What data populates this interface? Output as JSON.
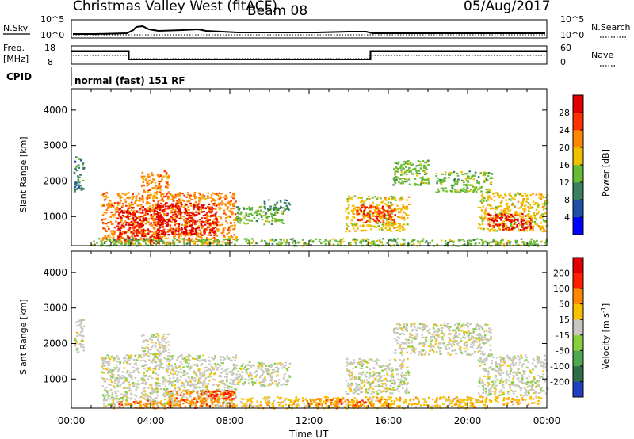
{
  "header": {
    "title": "Christmas Valley West (fitACF)",
    "beam": "Beam 08",
    "date": "05/Aug/2017"
  },
  "strips": {
    "nsky_label": "N.Sky",
    "nsky_ticks": [
      "10^5",
      "10^0"
    ],
    "nsearch_label": "N.Search",
    "nsearch_ticks": [
      "10^5",
      "10^0"
    ],
    "freq_label": "Freq.",
    "freq_unit": "[MHz]",
    "freq_ticks": [
      "18",
      "8"
    ],
    "nave_label": "Nave",
    "nave_ticks": [
      "60",
      "0"
    ],
    "cpid_label": "CPID",
    "cpid_value": "normal (fast) 151 RF",
    "freq_steps": [
      {
        "from_h": 0,
        "to_h": 2.9,
        "mhz": 15.2
      },
      {
        "from_h": 2.9,
        "to_h": 15.1,
        "mhz": 10.6
      },
      {
        "from_h": 15.1,
        "to_h": 24,
        "mhz": 15.2
      }
    ]
  },
  "chart_data": [
    {
      "type": "heatmap",
      "name": "power",
      "ylabel": "Slant Range [km]",
      "yticks": [
        "1000",
        "2000",
        "3000",
        "4000"
      ],
      "ylim": [
        180,
        4600
      ],
      "xlim_hours": [
        0,
        24
      ],
      "colorbar_label": "Power [dB]",
      "colorbar_ticks": [
        "4",
        "8",
        "12",
        "16",
        "20",
        "24",
        "28"
      ],
      "colors": [
        "#0000ff",
        "#1f4fa8",
        "#3d8060",
        "#66bb33",
        "#f0c000",
        "#ff8800",
        "#ff3000",
        "#e00000"
      ],
      "patches": [
        {
          "t0": 0.1,
          "t1": 0.6,
          "r0": 1700,
          "r1": 2700,
          "level": 2
        },
        {
          "t0": 1.5,
          "t1": 8.3,
          "r0": 250,
          "r1": 1700,
          "level": 5
        },
        {
          "t0": 2.3,
          "t1": 4.5,
          "r0": 350,
          "r1": 1300,
          "level": 7
        },
        {
          "t0": 4.3,
          "t1": 7.3,
          "r0": 500,
          "r1": 1400,
          "level": 7
        },
        {
          "t0": 3.5,
          "t1": 4.9,
          "r0": 1700,
          "r1": 2300,
          "level": 5
        },
        {
          "t0": 8.3,
          "t1": 10.7,
          "r0": 800,
          "r1": 1300,
          "level": 3
        },
        {
          "t0": 9.7,
          "t1": 11.0,
          "r0": 1200,
          "r1": 1500,
          "level": 2
        },
        {
          "t0": 13.8,
          "t1": 17.0,
          "r0": 600,
          "r1": 1600,
          "level": 4
        },
        {
          "t0": 14.3,
          "t1": 16.3,
          "r0": 850,
          "r1": 1350,
          "level": 6
        },
        {
          "t0": 16.2,
          "t1": 18.0,
          "r0": 1900,
          "r1": 2600,
          "level": 3
        },
        {
          "t0": 18.3,
          "t1": 21.2,
          "r0": 1700,
          "r1": 2300,
          "level": 3
        },
        {
          "t0": 20.5,
          "t1": 24.0,
          "r0": 600,
          "r1": 1700,
          "level": 4
        },
        {
          "t0": 21.0,
          "t1": 23.2,
          "r0": 650,
          "r1": 1100,
          "level": 7
        },
        {
          "t0": 1.0,
          "t1": 24.0,
          "r0": 190,
          "r1": 400,
          "level": 3
        }
      ]
    },
    {
      "type": "heatmap",
      "name": "velocity",
      "ylabel": "Slant Range [km]",
      "yticks": [
        "1000",
        "2000",
        "3000",
        "4000"
      ],
      "ylim": [
        180,
        4600
      ],
      "xlim_hours": [
        0,
        24
      ],
      "xticks": [
        "00:00",
        "04:00",
        "08:00",
        "12:00",
        "16:00",
        "20:00",
        "00:00"
      ],
      "xlabel": "Time UT",
      "colorbar_label": "Velocity [m s^-1]",
      "colorbar_ticks": [
        "200",
        "100",
        "50",
        "15",
        "-15",
        "-50",
        "-100",
        "-200"
      ],
      "colors": [
        "#2040c0",
        "#2e6e48",
        "#4ea850",
        "#88d040",
        "#c8c8c0",
        "#f8c000",
        "#ff8800",
        "#ff2000",
        "#e00000"
      ],
      "patches": [
        {
          "t0": 0.1,
          "t1": 0.6,
          "r0": 1700,
          "r1": 2700,
          "level": 4
        },
        {
          "t0": 1.5,
          "t1": 8.3,
          "r0": 250,
          "r1": 1700,
          "level": 4
        },
        {
          "t0": 3.5,
          "t1": 4.9,
          "r0": 1700,
          "r1": 2300,
          "level": 4
        },
        {
          "t0": 8.3,
          "t1": 11.0,
          "r0": 800,
          "r1": 1500,
          "level": 4
        },
        {
          "t0": 13.8,
          "t1": 17.0,
          "r0": 600,
          "r1": 1600,
          "level": 4
        },
        {
          "t0": 16.2,
          "t1": 21.2,
          "r0": 1700,
          "r1": 2600,
          "level": 4
        },
        {
          "t0": 20.5,
          "t1": 24.0,
          "r0": 550,
          "r1": 1700,
          "level": 4
        },
        {
          "t0": 4.8,
          "t1": 8.2,
          "r0": 200,
          "r1": 700,
          "level": 6
        },
        {
          "t0": 6.5,
          "t1": 8.2,
          "r0": 450,
          "r1": 700,
          "level": 7
        },
        {
          "t0": 2.0,
          "t1": 5.0,
          "r0": 190,
          "r1": 420,
          "level": 6
        },
        {
          "t0": 8.5,
          "t1": 21.0,
          "r0": 190,
          "r1": 520,
          "level": 5
        },
        {
          "t0": 12.0,
          "t1": 16.0,
          "r0": 260,
          "r1": 480,
          "level": 6
        },
        {
          "t0": 19.0,
          "t1": 23.8,
          "r0": 300,
          "r1": 520,
          "level": 5
        }
      ]
    }
  ]
}
